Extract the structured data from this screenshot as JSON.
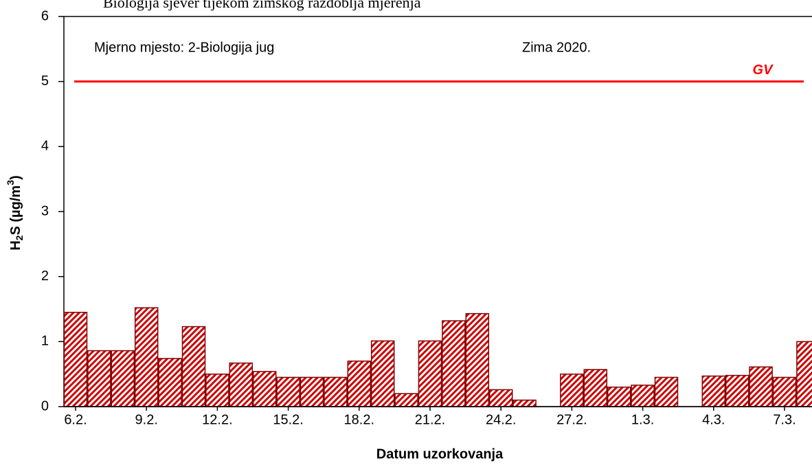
{
  "chart_data": {
    "type": "bar",
    "caption": "Biologija sjever tijekom zimskog razdoblja mjerenja",
    "annotations": [
      "Mjerno mjesto: 2-Biologija jug",
      "Zima 2020."
    ],
    "xlabel": "Datum uzorkovanja",
    "ylabel": [
      "H",
      "2",
      "S (µg/m",
      "3",
      ")"
    ],
    "categories": [
      "6.2.",
      null,
      null,
      "9.2.",
      null,
      null,
      "12.2.",
      null,
      null,
      "15.2.",
      null,
      null,
      "18.2.",
      null,
      null,
      "21.2.",
      null,
      null,
      "24.2.",
      null,
      null,
      "27.2.",
      null,
      null,
      "1.3.",
      null,
      null,
      "4.3.",
      null,
      null,
      "7.3.",
      null
    ],
    "values": [
      1.45,
      0.86,
      0.86,
      1.52,
      0.74,
      1.23,
      0.5,
      0.67,
      0.54,
      0.45,
      0.45,
      0.45,
      0.7,
      1.01,
      0.2,
      1.01,
      1.32,
      1.43,
      0.26,
      0.1,
      null,
      0.5,
      0.57,
      0.3,
      0.33,
      0.45,
      null,
      0.47,
      0.48,
      0.61,
      0.45,
      1.0
    ],
    "color": "#cc0000",
    "edge_color": "#800000",
    "ylim": [
      0,
      6
    ],
    "yticks": [
      0,
      1,
      2,
      3,
      4,
      5,
      6
    ],
    "reference_line": {
      "value": 5,
      "label": "GV",
      "color": "#ff0000"
    }
  }
}
